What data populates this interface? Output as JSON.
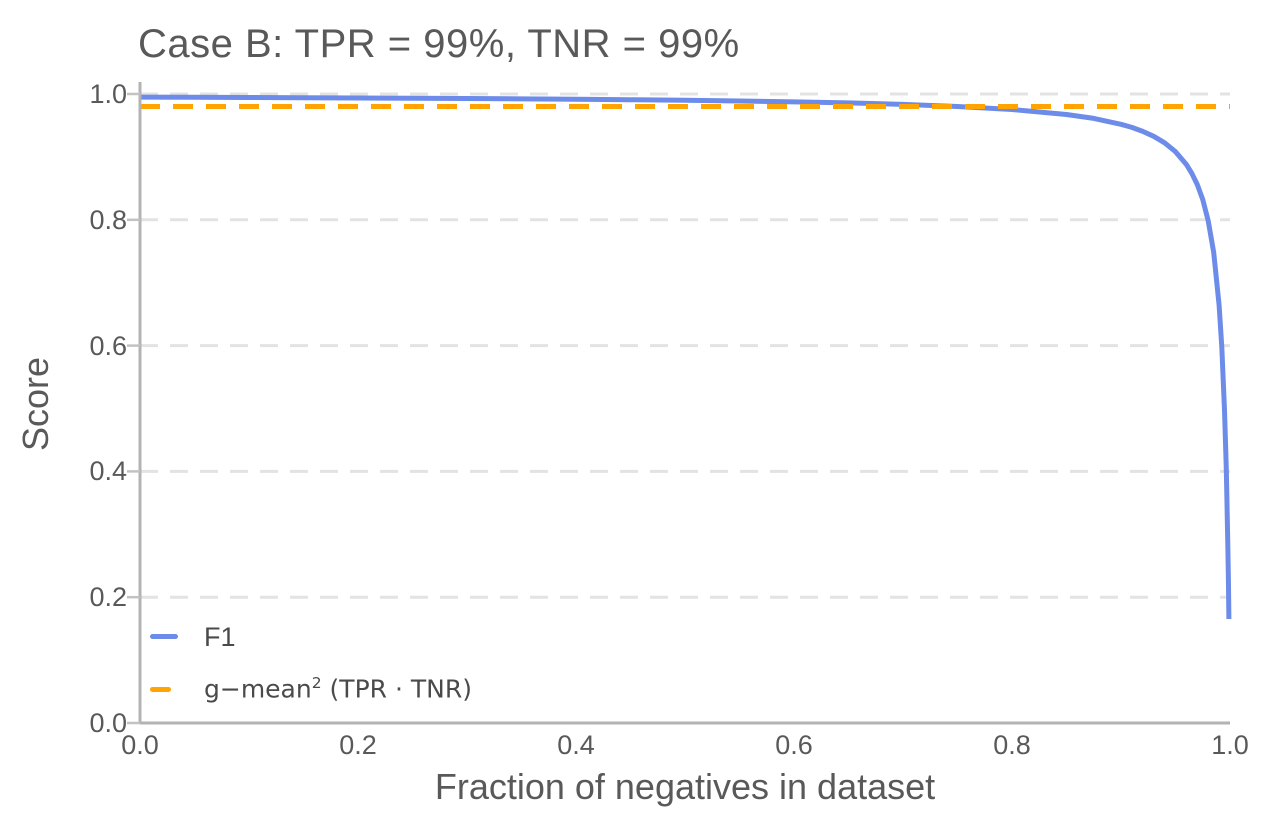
{
  "title": "Case B: TPR = 99%, TNR = 99%",
  "axes": {
    "xlabel": "Fraction of negatives in dataset",
    "ylabel": "Score",
    "x_ticks": [
      "0.0",
      "0.2",
      "0.4",
      "0.6",
      "0.8",
      "1.0"
    ],
    "y_ticks": [
      "0.0",
      "0.2",
      "0.4",
      "0.6",
      "0.8",
      "1.0"
    ]
  },
  "legend": {
    "f1_label": "F1",
    "gmean_prefix": "g−mean",
    "gmean_sup": "2",
    "gmean_suffix": " (TPR · TNR)"
  },
  "colors": {
    "f1_line": "#6d8ce9",
    "gmean_line": "#ffa400",
    "grid": "#e3e3e3",
    "spine": "#b3b3b3",
    "tick": "#c2c2c2",
    "text": "#595959",
    "legend_text": "#4a4a4a"
  },
  "chart_data": {
    "type": "line",
    "title": "Case B: TPR = 99%, TNR = 99%",
    "xlabel": "Fraction of negatives in dataset",
    "ylabel": "Score",
    "xlim": [
      0.0,
      1.0
    ],
    "ylim": [
      0.0,
      1.0
    ],
    "grid": "horizontal-dashed",
    "legend_position": "lower-left",
    "tpr": 0.99,
    "tnr": 0.99,
    "series": [
      {
        "name": "F1",
        "style": "solid",
        "color": "#6d8ce9",
        "points": [
          [
            0.0,
            0.995
          ],
          [
            0.05,
            0.9948
          ],
          [
            0.1,
            0.9944
          ],
          [
            0.15,
            0.9941
          ],
          [
            0.2,
            0.9937
          ],
          [
            0.25,
            0.9933
          ],
          [
            0.3,
            0.9928
          ],
          [
            0.35,
            0.9922
          ],
          [
            0.4,
            0.9917
          ],
          [
            0.45,
            0.991
          ],
          [
            0.5,
            0.99
          ],
          [
            0.55,
            0.9889
          ],
          [
            0.6,
            0.9875
          ],
          [
            0.65,
            0.9858
          ],
          [
            0.7,
            0.9834
          ],
          [
            0.75,
            0.9802
          ],
          [
            0.8,
            0.9754
          ],
          [
            0.85,
            0.9674
          ],
          [
            0.875,
            0.9612
          ],
          [
            0.9,
            0.9519
          ],
          [
            0.91,
            0.9469
          ],
          [
            0.92,
            0.9406
          ],
          [
            0.93,
            0.9327
          ],
          [
            0.94,
            0.9224
          ],
          [
            0.95,
            0.9083
          ],
          [
            0.96,
            0.8879
          ],
          [
            0.965,
            0.8739
          ],
          [
            0.97,
            0.8559
          ],
          [
            0.975,
            0.8319
          ],
          [
            0.98,
            0.7984
          ],
          [
            0.985,
            0.7481
          ],
          [
            0.99,
            0.6644
          ],
          [
            0.9925,
            0.5976
          ],
          [
            0.995,
            0.4975
          ],
          [
            0.9965,
            0.4093
          ],
          [
            0.997,
            0.3726
          ],
          [
            0.998,
            0.2837
          ],
          [
            0.9985,
            0.229
          ],
          [
            0.999,
            0.1653
          ]
        ]
      },
      {
        "name": "g−mean² (TPR · TNR)",
        "style": "dashed",
        "color": "#ffa400",
        "constant_value": 0.9801,
        "points": [
          [
            0.0,
            0.9801
          ],
          [
            1.0,
            0.9801
          ]
        ]
      }
    ]
  }
}
